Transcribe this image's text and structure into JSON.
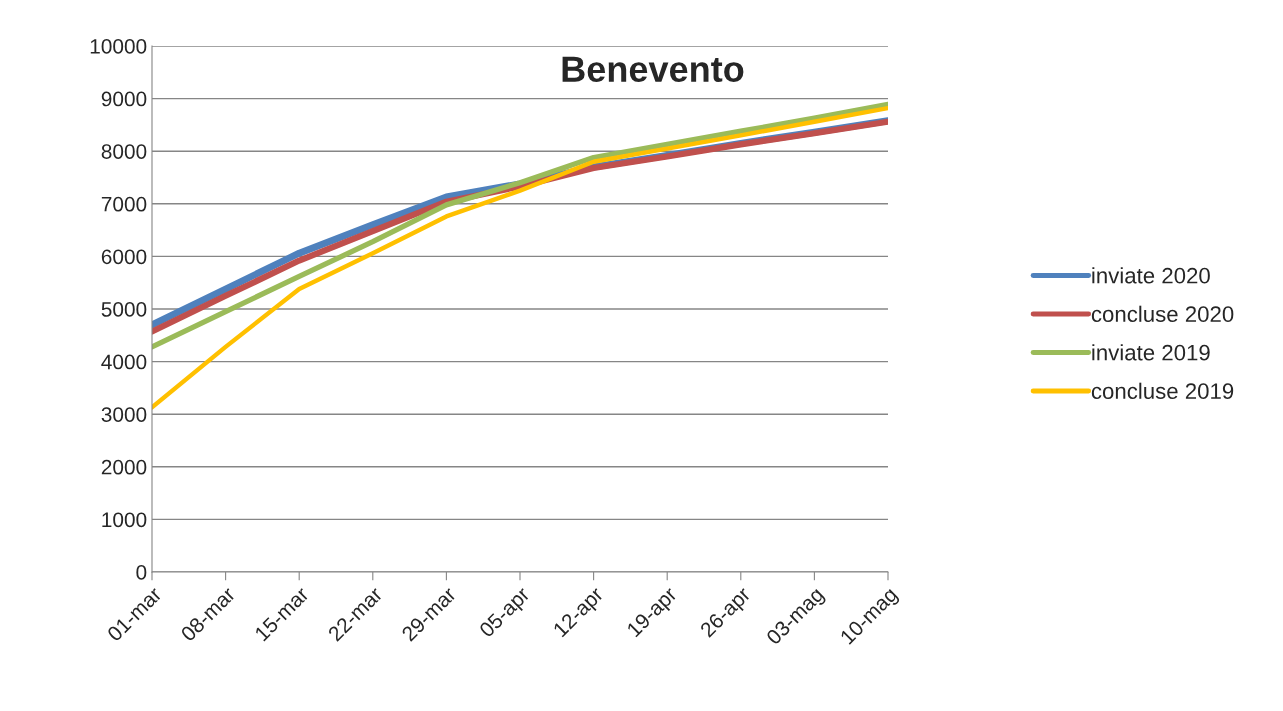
{
  "chart_data": {
    "type": "line",
    "title": "Benevento",
    "categories": [
      "01-mar",
      "08-mar",
      "15-mar",
      "22-mar",
      "29-mar",
      "05-apr",
      "12-apr",
      "19-apr",
      "26-apr",
      "03-mag",
      "10-mag"
    ],
    "series": [
      {
        "name": "inviate 2020",
        "color": "#4f81bd",
        "values": [
          4700,
          5380,
          6060,
          6600,
          7130,
          7380,
          7700,
          7920,
          8150,
          8360,
          8580
        ]
      },
      {
        "name": "concluse 2020",
        "color": "#c0504d",
        "values": [
          4570,
          5250,
          5920,
          6480,
          7040,
          7330,
          7680,
          7900,
          8130,
          8340,
          8560
        ]
      },
      {
        "name": "inviate 2019",
        "color": "#9bbb59",
        "values": [
          4280,
          4950,
          5620,
          6280,
          6980,
          7400,
          7880,
          8130,
          8380,
          8630,
          8890
        ]
      },
      {
        "name": "concluse 2019",
        "color": "#ffc000",
        "values": [
          3130,
          4280,
          5380,
          6060,
          6760,
          7250,
          7800,
          8050,
          8300,
          8560,
          8820
        ]
      }
    ],
    "ylim": [
      0,
      10000
    ],
    "yticks": [
      0,
      1000,
      2000,
      3000,
      4000,
      5000,
      6000,
      7000,
      8000,
      9000,
      10000
    ],
    "grid": "y",
    "legend": "right",
    "marker": "none",
    "line_style": "solid"
  }
}
